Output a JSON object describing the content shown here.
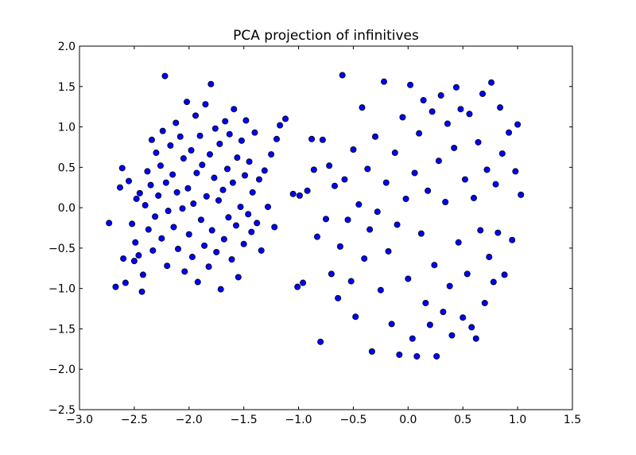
{
  "chart_data": {
    "type": "scatter",
    "title": "PCA projection of infinitives",
    "xlabel": "",
    "ylabel": "",
    "xlim": [
      -3.0,
      1.5
    ],
    "ylim": [
      -2.5,
      2.0
    ],
    "x_ticks": [
      -3.0,
      -2.5,
      -2.0,
      -1.5,
      -1.0,
      -0.5,
      0.0,
      0.5,
      1.0,
      1.5
    ],
    "y_ticks": [
      -2.5,
      -2.0,
      -1.5,
      -1.0,
      -0.5,
      0.0,
      0.5,
      1.0,
      1.5,
      2.0
    ],
    "x_tick_labels": [
      "−3.0",
      "−2.5",
      "−2.0",
      "−1.5",
      "−1.0",
      "−0.5",
      "0.0",
      "0.5",
      "1.0",
      "1.5"
    ],
    "y_tick_labels": [
      "−2.5",
      "−2.0",
      "−1.5",
      "−1.0",
      "−0.5",
      "0.0",
      "0.5",
      "1.0",
      "1.5",
      "2.0"
    ],
    "grid": false,
    "marker_color": "#0000ff",
    "marker_edge_color": "#000000",
    "series": [
      {
        "points": [
          [
            -2.73,
            -0.19
          ],
          [
            -2.67,
            -0.98
          ],
          [
            -2.63,
            0.25
          ],
          [
            -2.61,
            0.49
          ],
          [
            -2.6,
            -0.63
          ],
          [
            -2.58,
            -0.93
          ],
          [
            -2.55,
            0.33
          ],
          [
            -2.52,
            -0.2
          ],
          [
            -2.5,
            -0.66
          ],
          [
            -2.49,
            -0.43
          ],
          [
            -2.48,
            0.11
          ],
          [
            -2.46,
            -0.59
          ],
          [
            -2.45,
            0.18
          ],
          [
            -2.43,
            -1.04
          ],
          [
            -2.42,
            -0.83
          ],
          [
            -2.4,
            0.03
          ],
          [
            -2.38,
            0.45
          ],
          [
            -2.37,
            -0.27
          ],
          [
            -2.35,
            0.28
          ],
          [
            -2.34,
            0.84
          ],
          [
            -2.33,
            -0.53
          ],
          [
            -2.31,
            -0.11
          ],
          [
            -2.3,
            0.68
          ],
          [
            -2.28,
            0.15
          ],
          [
            -2.26,
            0.52
          ],
          [
            -2.25,
            -0.38
          ],
          [
            -2.24,
            0.95
          ],
          [
            -2.22,
            1.63
          ],
          [
            -2.21,
            0.31
          ],
          [
            -2.2,
            -0.72
          ],
          [
            -2.19,
            -0.04
          ],
          [
            -2.17,
            0.77
          ],
          [
            -2.15,
            0.41
          ],
          [
            -2.14,
            -0.24
          ],
          [
            -2.12,
            1.05
          ],
          [
            -2.11,
            0.19
          ],
          [
            -2.1,
            -0.51
          ],
          [
            -2.08,
            0.88
          ],
          [
            -2.06,
            -0.01
          ],
          [
            -2.05,
            0.61
          ],
          [
            -2.04,
            -0.79
          ],
          [
            -2.02,
            1.31
          ],
          [
            -2.01,
            0.24
          ],
          [
            -2.0,
            -0.33
          ],
          [
            -1.98,
            0.71
          ],
          [
            -1.97,
            -0.61
          ],
          [
            -1.96,
            0.05
          ],
          [
            -1.94,
            1.14
          ],
          [
            -1.93,
            0.43
          ],
          [
            -1.92,
            -0.92
          ],
          [
            -1.9,
            0.89
          ],
          [
            -1.89,
            -0.15
          ],
          [
            -1.88,
            0.53
          ],
          [
            -1.86,
            -0.47
          ],
          [
            -1.85,
            1.28
          ],
          [
            -1.84,
            0.14
          ],
          [
            -1.82,
            -0.73
          ],
          [
            -1.81,
            0.66
          ],
          [
            -1.8,
            1.53
          ],
          [
            -1.79,
            -0.28
          ],
          [
            -1.77,
            0.37
          ],
          [
            -1.76,
            0.98
          ],
          [
            -1.75,
            -0.55
          ],
          [
            -1.73,
            0.09
          ],
          [
            -1.72,
            0.79
          ],
          [
            -1.71,
            -1.01
          ],
          [
            -1.69,
            0.22
          ],
          [
            -1.68,
            -0.39
          ],
          [
            -1.67,
            1.07
          ],
          [
            -1.65,
            0.48
          ],
          [
            -1.64,
            -0.12
          ],
          [
            -1.63,
            0.91
          ],
          [
            -1.61,
            -0.64
          ],
          [
            -1.6,
            0.31
          ],
          [
            -1.59,
            1.22
          ],
          [
            -1.57,
            -0.22
          ],
          [
            -1.56,
            0.62
          ],
          [
            -1.55,
            -0.86
          ],
          [
            -1.53,
            0.01
          ],
          [
            -1.52,
            0.83
          ],
          [
            -1.5,
            -0.45
          ],
          [
            -1.49,
            0.4
          ],
          [
            -1.48,
            1.08
          ],
          [
            -1.46,
            -0.08
          ],
          [
            -1.45,
            0.57
          ],
          [
            -1.43,
            -0.3
          ],
          [
            -1.42,
            0.19
          ],
          [
            -1.4,
            0.93
          ],
          [
            -1.38,
            -0.19
          ],
          [
            -1.36,
            0.35
          ],
          [
            -1.34,
            -0.53
          ],
          [
            -1.31,
            0.46
          ],
          [
            -1.28,
            0.01
          ],
          [
            -1.25,
            0.66
          ],
          [
            -1.22,
            -0.24
          ],
          [
            -1.2,
            0.85
          ],
          [
            -1.17,
            1.02
          ],
          [
            -1.12,
            1.1
          ],
          [
            -1.05,
            0.17
          ],
          [
            -1.01,
            -0.98
          ],
          [
            -0.99,
            0.15
          ],
          [
            -0.96,
            -0.93
          ],
          [
            -0.92,
            0.21
          ],
          [
            -0.88,
            0.85
          ],
          [
            -0.86,
            0.47
          ],
          [
            -0.83,
            -0.36
          ],
          [
            -0.8,
            -1.66
          ],
          [
            -0.78,
            0.84
          ],
          [
            -0.75,
            -0.14
          ],
          [
            -0.72,
            0.52
          ],
          [
            -0.7,
            -0.82
          ],
          [
            -0.67,
            0.27
          ],
          [
            -0.64,
            -1.12
          ],
          [
            -0.62,
            -0.48
          ],
          [
            -0.6,
            1.64
          ],
          [
            -0.58,
            0.35
          ],
          [
            -0.55,
            -0.15
          ],
          [
            -0.52,
            -0.91
          ],
          [
            -0.5,
            0.72
          ],
          [
            -0.48,
            -1.35
          ],
          [
            -0.45,
            0.04
          ],
          [
            -0.42,
            1.24
          ],
          [
            -0.4,
            -0.63
          ],
          [
            -0.37,
            0.48
          ],
          [
            -0.35,
            -0.27
          ],
          [
            -0.33,
            -1.78
          ],
          [
            -0.3,
            0.88
          ],
          [
            -0.28,
            -0.05
          ],
          [
            -0.25,
            -1.02
          ],
          [
            -0.22,
            1.56
          ],
          [
            -0.2,
            0.31
          ],
          [
            -0.18,
            -0.54
          ],
          [
            -0.15,
            -1.44
          ],
          [
            -0.12,
            0.68
          ],
          [
            -0.1,
            -0.21
          ],
          [
            -0.08,
            -1.82
          ],
          [
            -0.05,
            1.12
          ],
          [
            -0.02,
            0.11
          ],
          [
            0.0,
            -0.88
          ],
          [
            0.02,
            1.52
          ],
          [
            0.04,
            -1.62
          ],
          [
            0.06,
            0.43
          ],
          [
            0.08,
            -1.84
          ],
          [
            0.1,
            0.92
          ],
          [
            0.12,
            -0.32
          ],
          [
            0.14,
            1.33
          ],
          [
            0.16,
            -1.18
          ],
          [
            0.18,
            0.21
          ],
          [
            0.2,
            -1.45
          ],
          [
            0.22,
            1.19
          ],
          [
            0.24,
            -0.71
          ],
          [
            0.26,
            -1.84
          ],
          [
            0.28,
            0.58
          ],
          [
            0.3,
            1.39
          ],
          [
            0.32,
            -1.29
          ],
          [
            0.34,
            0.07
          ],
          [
            0.36,
            1.04
          ],
          [
            0.38,
            -0.97
          ],
          [
            0.4,
            -1.58
          ],
          [
            0.42,
            0.74
          ],
          [
            0.44,
            1.49
          ],
          [
            0.46,
            -0.43
          ],
          [
            0.48,
            1.22
          ],
          [
            0.5,
            -1.36
          ],
          [
            0.52,
            0.35
          ],
          [
            0.54,
            -0.82
          ],
          [
            0.56,
            1.16
          ],
          [
            0.58,
            -1.48
          ],
          [
            0.6,
            0.12
          ],
          [
            0.62,
            -1.62
          ],
          [
            0.64,
            0.81
          ],
          [
            0.66,
            -0.28
          ],
          [
            0.68,
            1.41
          ],
          [
            0.7,
            -1.18
          ],
          [
            0.72,
            0.47
          ],
          [
            0.74,
            -0.61
          ],
          [
            0.76,
            1.55
          ],
          [
            0.78,
            -0.92
          ],
          [
            0.8,
            0.29
          ],
          [
            0.82,
            -0.31
          ],
          [
            0.84,
            1.24
          ],
          [
            0.86,
            0.67
          ],
          [
            0.88,
            -0.83
          ],
          [
            0.92,
            0.93
          ],
          [
            0.95,
            -0.4
          ],
          [
            0.98,
            0.45
          ],
          [
            1.0,
            1.03
          ],
          [
            1.03,
            0.16
          ]
        ]
      }
    ]
  }
}
